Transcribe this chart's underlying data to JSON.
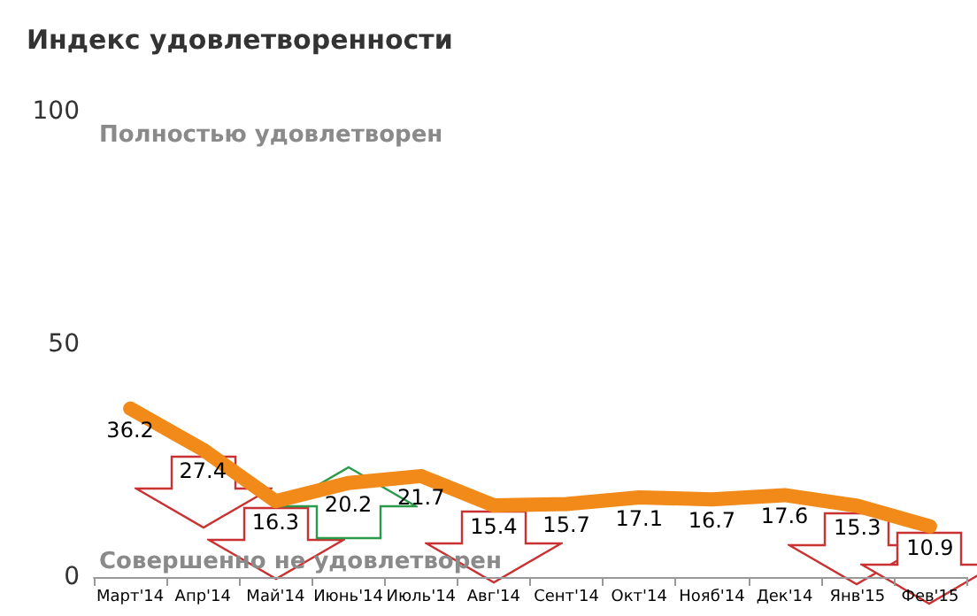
{
  "chart_data": {
    "type": "line",
    "title": "Индекс удовлетворенности",
    "categories": [
      "Март'14",
      "Апр'14",
      "Май'14",
      "Июнь'14",
      "Июль'14",
      "Авг'14",
      "Сент'14",
      "Окт'14",
      "Нояб'14",
      "Дек'14",
      "Янв'15",
      "Фев'15"
    ],
    "values": [
      36.2,
      27.4,
      16.3,
      20.2,
      21.7,
      15.4,
      15.7,
      17.1,
      16.7,
      17.6,
      15.3,
      10.9
    ],
    "color": "#f28a1a",
    "ylim": [
      0,
      100
    ],
    "yticks": [
      0,
      50,
      100
    ],
    "grid": false,
    "data_labels": true,
    "marker": "none",
    "annotations": [
      "Полностью удовлетворен",
      "Совершенно не удовлетворен"
    ]
  }
}
